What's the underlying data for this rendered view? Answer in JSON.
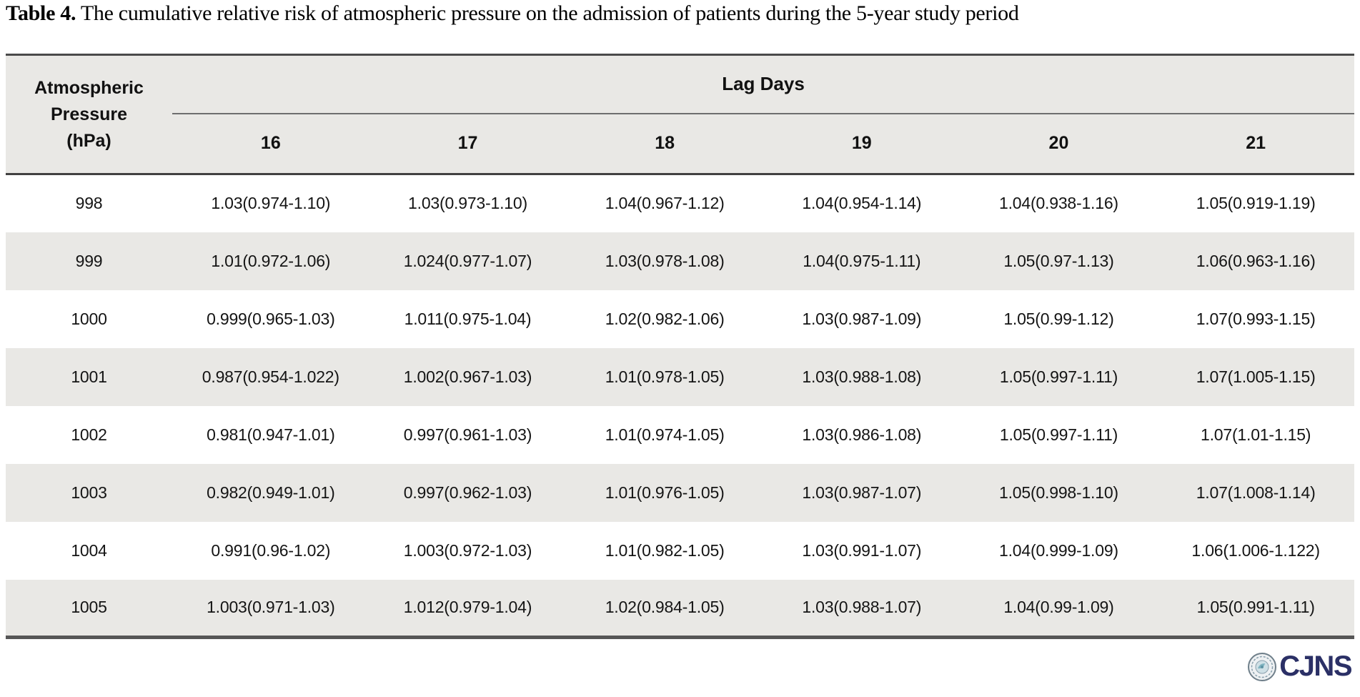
{
  "page": {
    "title_label": "Table 4.",
    "title_text": " The cumulative relative risk of atmospheric pressure on the admission of patients during the 5-year study period"
  },
  "table": {
    "pressure_header_lines": [
      "Atmospheric",
      "Pressure",
      "(hPa)"
    ],
    "lag_group_header": "Lag Days",
    "lag_day_headers": [
      "16",
      "17",
      "18",
      "19",
      "20",
      "21"
    ],
    "rows": [
      {
        "pressure": "998",
        "values": [
          "1.03(0.974-1.10)",
          "1.03(0.973-1.10)",
          "1.04(0.967-1.12)",
          "1.04(0.954-1.14)",
          "1.04(0.938-1.16)",
          "1.05(0.919-1.19)"
        ]
      },
      {
        "pressure": "999",
        "values": [
          "1.01(0.972-1.06)",
          "1.024(0.977-1.07)",
          "1.03(0.978-1.08)",
          "1.04(0.975-1.11)",
          "1.05(0.97-1.13)",
          "1.06(0.963-1.16)"
        ]
      },
      {
        "pressure": "1000",
        "values": [
          "0.999(0.965-1.03)",
          "1.011(0.975-1.04)",
          "1.02(0.982-1.06)",
          "1.03(0.987-1.09)",
          "1.05(0.99-1.12)",
          "1.07(0.993-1.15)"
        ]
      },
      {
        "pressure": "1001",
        "values": [
          "0.987(0.954-1.022)",
          "1.002(0.967-1.03)",
          "1.01(0.978-1.05)",
          "1.03(0.988-1.08)",
          "1.05(0.997-1.11)",
          "1.07(1.005-1.15)"
        ]
      },
      {
        "pressure": "1002",
        "values": [
          "0.981(0.947-1.01)",
          "0.997(0.961-1.03)",
          "1.01(0.974-1.05)",
          "1.03(0.986-1.08)",
          "1.05(0.997-1.11)",
          "1.07(1.01-1.15)"
        ]
      },
      {
        "pressure": "1003",
        "values": [
          "0.982(0.949-1.01)",
          "0.997(0.962-1.03)",
          "1.01(0.976-1.05)",
          "1.03(0.987-1.07)",
          "1.05(0.998-1.10)",
          "1.07(1.008-1.14)"
        ]
      },
      {
        "pressure": "1004",
        "values": [
          "0.991(0.96-1.02)",
          "1.003(0.972-1.03)",
          "1.01(0.982-1.05)",
          "1.03(0.991-1.07)",
          "1.04(0.999-1.09)",
          "1.06(1.006-1.122)"
        ]
      },
      {
        "pressure": "1005",
        "values": [
          "1.003(0.971-1.03)",
          "1.012(0.979-1.04)",
          "1.02(0.984-1.05)",
          "1.03(0.988-1.07)",
          "1.04(0.99-1.09)",
          "1.05(0.991-1.11)"
        ]
      }
    ]
  },
  "footer": {
    "journal_acronym": "CJNS"
  },
  "colors": {
    "header_bg": "#e9e8e5",
    "stripe_bg": "#e9e8e5",
    "border_dark": "#4a4a4a",
    "logo_navy": "#2b3066"
  }
}
